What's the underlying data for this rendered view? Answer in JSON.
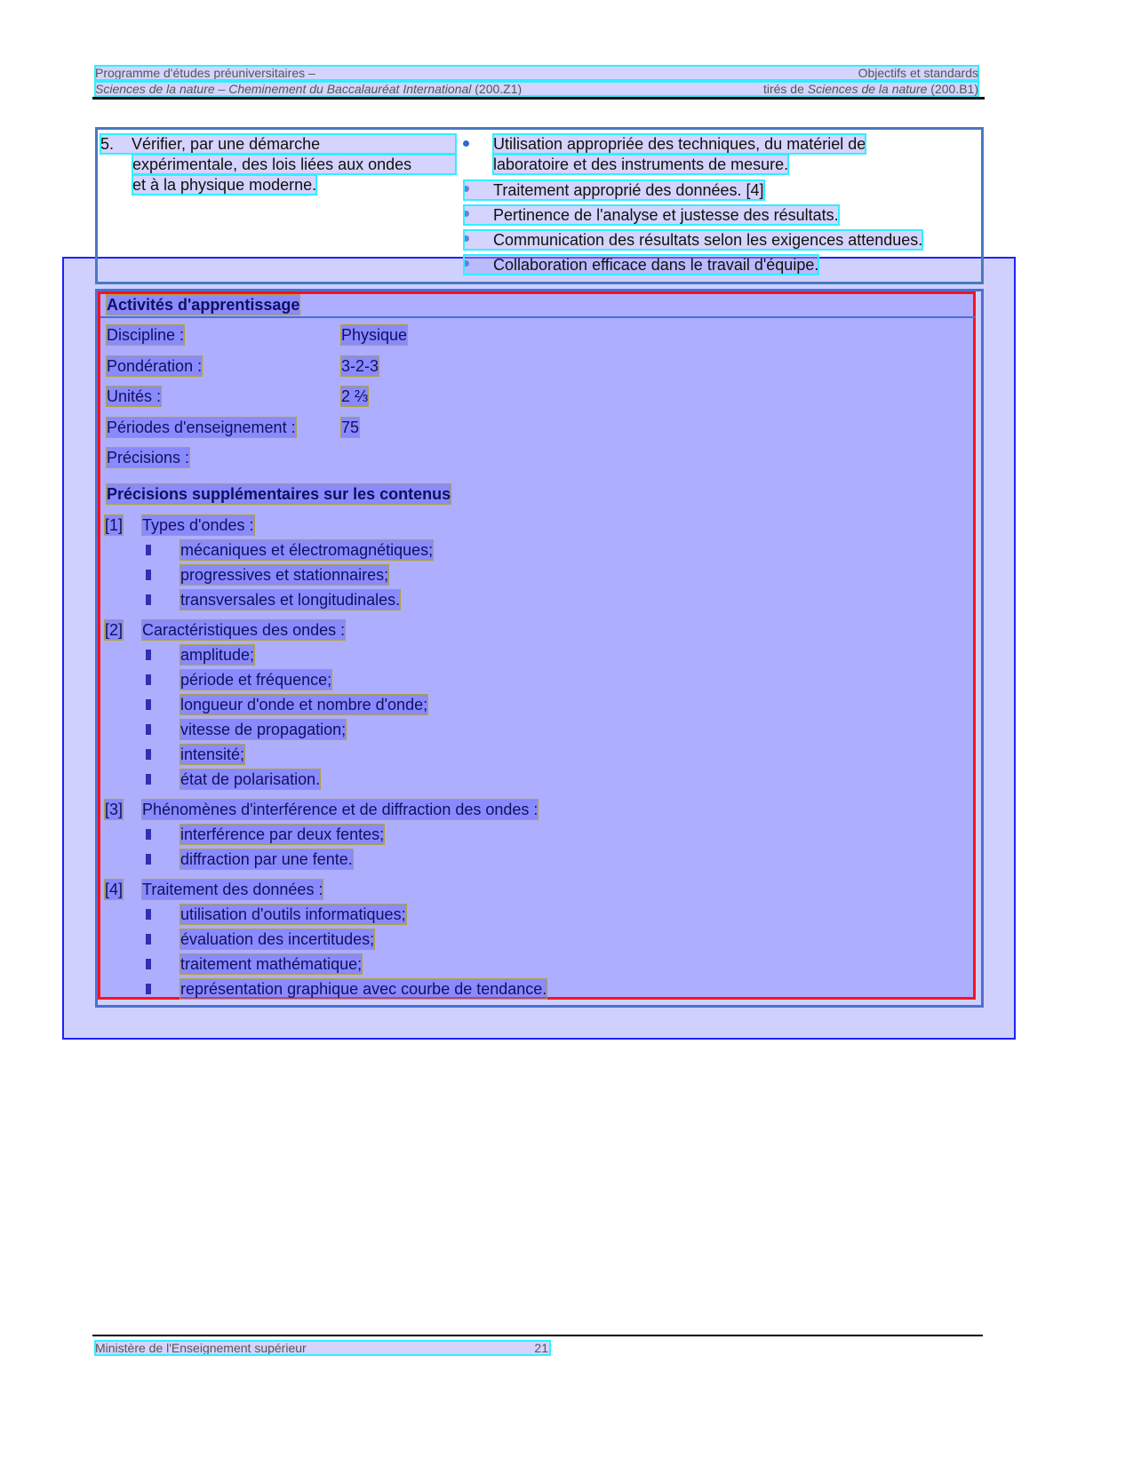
{
  "header": {
    "left1": "Programme d'études préuniversitaires –",
    "right1": "Objectifs et standards",
    "left2": "Sciences de la nature – Cheminement du Baccalauréat International",
    "left2_code": "(200.Z1)",
    "right2_pre": "tirés de",
    "right2_it": "Sciences de la nature",
    "right2_code": "(200.B1)"
  },
  "objective": {
    "number": "5.",
    "lines": [
      "Vérifier, par une démarche",
      "expérimentale, des lois liées aux ondes",
      "et à la physique moderne."
    ]
  },
  "standards": [
    [
      "Utilisation appropriée des techniques, du matériel de",
      "laboratoire et des instruments de mesure."
    ],
    [
      "Traitement approprié des données. [4]"
    ],
    [
      "Pertinence de l'analyse et justesse des résultats."
    ],
    [
      "Communication des résultats selon les exigences attendues."
    ],
    [
      "Collaboration efficace dans le travail d'équipe."
    ]
  ],
  "activities": {
    "title": "Activités d'apprentissage",
    "fields": [
      {
        "label": "Discipline :",
        "value": "Physique"
      },
      {
        "label": "Pondération :",
        "value": "3-2-3"
      },
      {
        "label": "Unités :",
        "value": "2 ⅔"
      },
      {
        "label": "Périodes d'enseignement :",
        "value": "75"
      },
      {
        "label": "Précisions :",
        "value": ""
      }
    ],
    "sub_title": "Précisions supplémentaires sur les contenus",
    "sections": [
      {
        "num": "[1]",
        "title": "Types d'ondes :",
        "items": [
          "mécaniques et électromagnétiques;",
          "progressives et stationnaires;",
          "transversales et longitudinales."
        ]
      },
      {
        "num": "[2]",
        "title": "Caractéristiques des ondes :",
        "items": [
          "amplitude;",
          "période et fréquence;",
          "longueur d'onde et nombre d'onde;",
          "vitesse de propagation;",
          "intensité;",
          "état de polarisation."
        ]
      },
      {
        "num": "[3]",
        "title": "Phénomènes d'interférence et de diffraction des ondes :",
        "items": [
          "interférence par deux fentes;",
          "diffraction par une fente."
        ]
      },
      {
        "num": "[4]",
        "title": "Traitement des données :",
        "items": [
          "utilisation d'outils informatiques;",
          "évaluation des incertitudes;",
          "traitement mathématique;",
          "représentation graphique avec courbe de tendance."
        ]
      }
    ]
  },
  "footer": {
    "left": "Ministère de l'Enseignement supérieur",
    "page": "21"
  }
}
